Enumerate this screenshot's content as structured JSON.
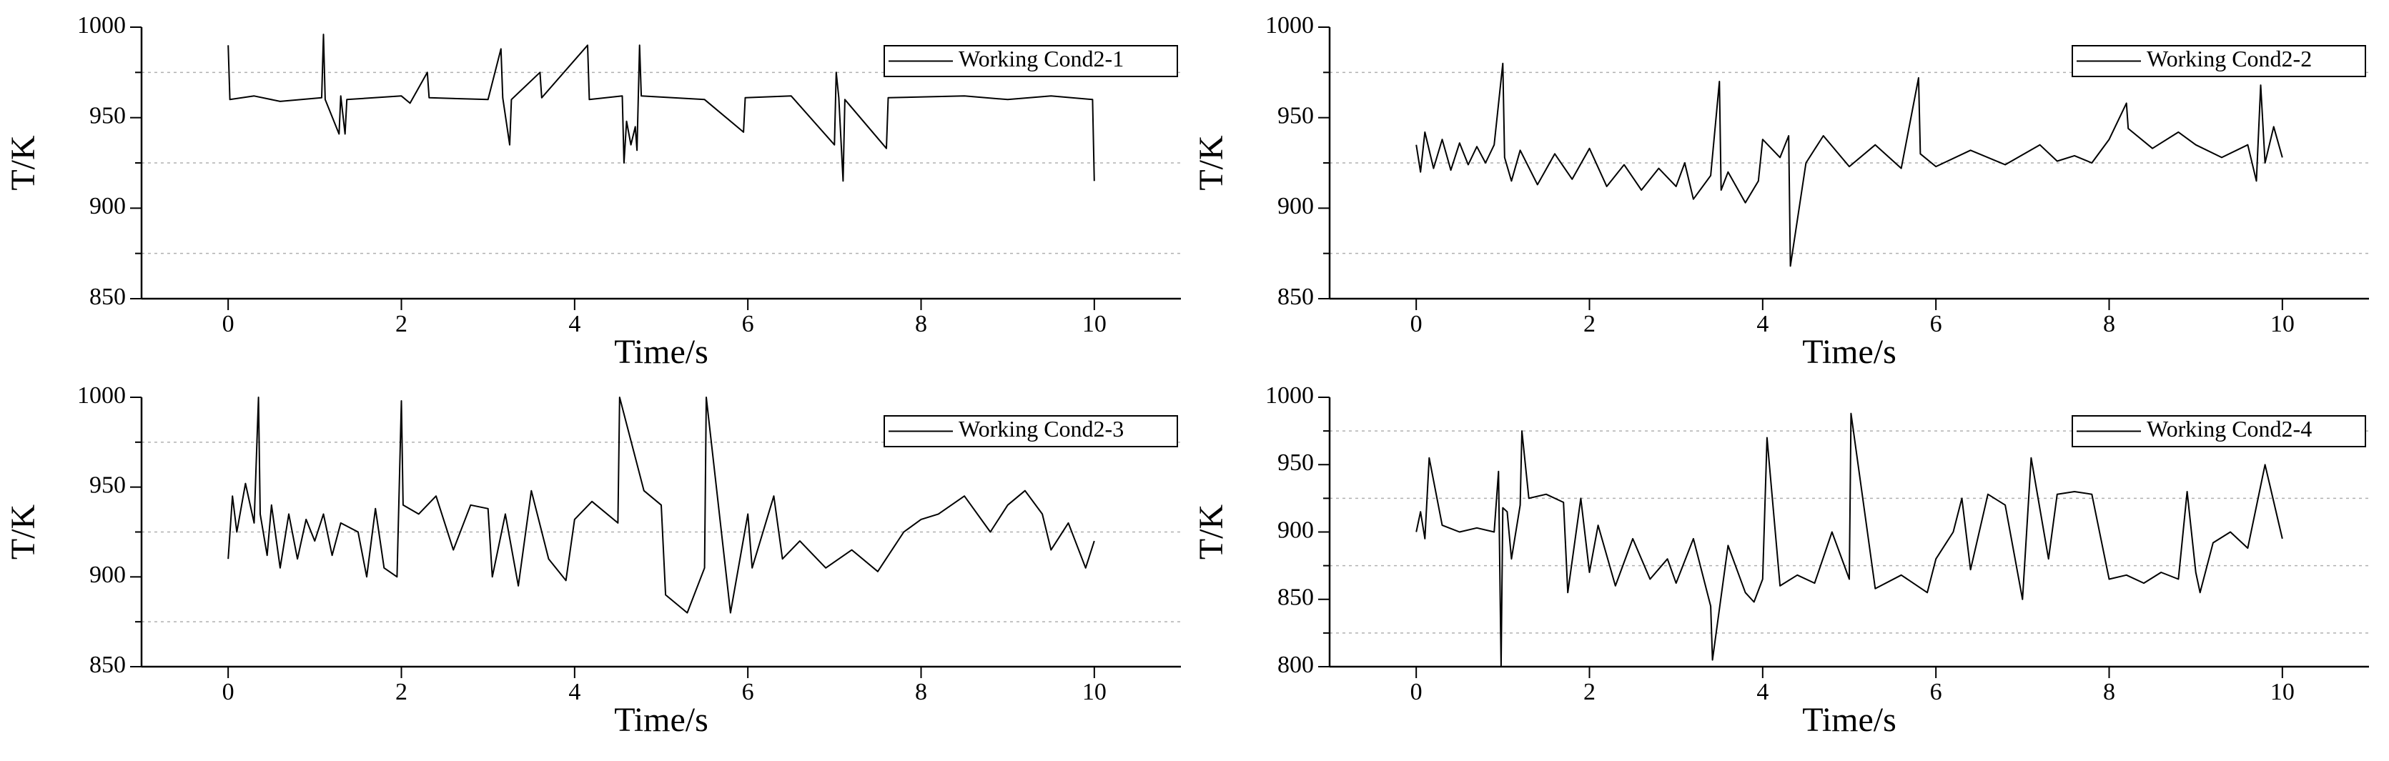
{
  "chart_data": [
    {
      "type": "line",
      "xlabel": "Time/s",
      "ylabel": "T/K",
      "legend": "upper right",
      "xlim": [
        -1,
        11
      ],
      "xticks": [
        0,
        2,
        4,
        6,
        8,
        10
      ],
      "ylim": [
        850,
        1000
      ],
      "yticks": [
        850,
        900,
        950,
        1000
      ],
      "minor_grid": [
        875,
        925,
        975
      ],
      "x": [
        0,
        0.02,
        0.3,
        0.6,
        1.08,
        1.1,
        1.12,
        1.28,
        1.3,
        1.35,
        1.37,
        2.0,
        2.1,
        2.3,
        2.32,
        3.0,
        3.15,
        3.17,
        3.25,
        3.27,
        3.6,
        3.62,
        4.15,
        4.17,
        4.55,
        4.57,
        4.6,
        4.65,
        4.7,
        4.72,
        4.75,
        4.77,
        5.5,
        5.95,
        5.97,
        6.5,
        7.0,
        7.02,
        7.05,
        7.1,
        7.12,
        7.6,
        7.62,
        8.5,
        9.0,
        9.5,
        9.98,
        10.0
      ],
      "series": [
        {
          "name": "Working Cond2-1",
          "color": "#000000",
          "values": [
            990,
            960,
            962,
            959,
            961,
            996,
            960,
            941,
            962,
            941,
            960,
            962,
            958,
            975,
            961,
            960,
            988,
            961,
            935,
            960,
            975,
            961,
            990,
            960,
            962,
            925,
            948,
            935,
            945,
            932,
            990,
            962,
            960,
            942,
            961,
            962,
            935,
            975,
            961,
            915,
            960,
            933,
            961,
            962,
            960,
            962,
            960,
            915
          ]
        }
      ]
    },
    {
      "type": "line",
      "xlabel": "Time/s",
      "ylabel": "T/K",
      "legend": "upper right",
      "xlim": [
        -1,
        11
      ],
      "xticks": [
        0,
        2,
        4,
        6,
        8,
        10
      ],
      "ylim": [
        850,
        1000
      ],
      "yticks": [
        850,
        900,
        950,
        1000
      ],
      "minor_grid": [
        875,
        925,
        975
      ],
      "x": [
        0,
        0.05,
        0.1,
        0.2,
        0.3,
        0.4,
        0.5,
        0.6,
        0.7,
        0.8,
        0.9,
        1.0,
        1.02,
        1.1,
        1.2,
        1.4,
        1.6,
        1.8,
        2.0,
        2.2,
        2.4,
        2.6,
        2.8,
        3.0,
        3.1,
        3.2,
        3.4,
        3.5,
        3.52,
        3.6,
        3.8,
        3.95,
        4.0,
        4.2,
        4.3,
        4.32,
        4.5,
        4.7,
        5.0,
        5.3,
        5.6,
        5.8,
        5.82,
        6.0,
        6.4,
        6.8,
        7.2,
        7.4,
        7.6,
        7.8,
        8.0,
        8.2,
        8.22,
        8.5,
        8.8,
        9.0,
        9.3,
        9.6,
        9.7,
        9.75,
        9.8,
        9.9,
        10.0
      ],
      "series": [
        {
          "name": "Working Cond2-2",
          "color": "#000000",
          "values": [
            935,
            920,
            942,
            922,
            938,
            921,
            936,
            924,
            934,
            925,
            935,
            980,
            928,
            915,
            932,
            913,
            930,
            916,
            933,
            912,
            924,
            910,
            922,
            912,
            925,
            905,
            918,
            970,
            910,
            920,
            903,
            915,
            938,
            928,
            940,
            868,
            925,
            940,
            923,
            935,
            922,
            972,
            930,
            923,
            932,
            924,
            935,
            926,
            929,
            925,
            938,
            958,
            944,
            933,
            942,
            935,
            928,
            935,
            915,
            968,
            925,
            945,
            928
          ]
        }
      ]
    },
    {
      "type": "line",
      "xlabel": "Time/s",
      "ylabel": "T/K",
      "legend": "upper right",
      "xlim": [
        -1,
        11
      ],
      "xticks": [
        0,
        2,
        4,
        6,
        8,
        10
      ],
      "ylim": [
        850,
        1000
      ],
      "yticks": [
        850,
        900,
        950,
        1000
      ],
      "minor_grid": [
        875,
        925,
        975
      ],
      "x": [
        0,
        0.05,
        0.1,
        0.2,
        0.3,
        0.35,
        0.37,
        0.45,
        0.5,
        0.6,
        0.7,
        0.8,
        0.9,
        1.0,
        1.1,
        1.2,
        1.3,
        1.5,
        1.6,
        1.7,
        1.8,
        1.95,
        2.0,
        2.02,
        2.2,
        2.4,
        2.6,
        2.8,
        3.0,
        3.05,
        3.2,
        3.35,
        3.5,
        3.7,
        3.9,
        4.0,
        4.2,
        4.5,
        4.52,
        4.8,
        5.0,
        5.05,
        5.3,
        5.5,
        5.52,
        5.8,
        6.0,
        6.05,
        6.3,
        6.4,
        6.6,
        6.9,
        7.2,
        7.5,
        7.8,
        8.0,
        8.2,
        8.5,
        8.8,
        9.0,
        9.2,
        9.4,
        9.5,
        9.7,
        9.9,
        10.0
      ],
      "series": [
        {
          "name": "Working Cond2-3",
          "color": "#000000",
          "values": [
            910,
            945,
            925,
            952,
            930,
            1000,
            935,
            912,
            940,
            905,
            935,
            910,
            932,
            920,
            935,
            912,
            930,
            925,
            900,
            938,
            905,
            900,
            998,
            940,
            935,
            945,
            915,
            940,
            938,
            900,
            935,
            895,
            948,
            910,
            898,
            932,
            942,
            930,
            1000,
            948,
            940,
            890,
            880,
            905,
            1000,
            880,
            935,
            905,
            945,
            910,
            920,
            905,
            915,
            903,
            925,
            932,
            935,
            945,
            925,
            940,
            948,
            935,
            915,
            930,
            905,
            920
          ]
        }
      ]
    },
    {
      "type": "line",
      "xlabel": "Time/s",
      "ylabel": "T/K",
      "legend": "upper right",
      "xlim": [
        -1,
        11
      ],
      "xticks": [
        0,
        2,
        4,
        6,
        8,
        10
      ],
      "ylim": [
        800,
        1000
      ],
      "yticks": [
        800,
        850,
        900,
        950,
        1000
      ],
      "minor_grid": [
        825,
        875,
        925,
        975
      ],
      "x": [
        0,
        0.05,
        0.1,
        0.15,
        0.3,
        0.5,
        0.7,
        0.9,
        0.95,
        0.98,
        1.0,
        1.05,
        1.1,
        1.2,
        1.22,
        1.3,
        1.5,
        1.7,
        1.75,
        1.9,
        2.0,
        2.1,
        2.3,
        2.5,
        2.7,
        2.9,
        3.0,
        3.2,
        3.4,
        3.42,
        3.6,
        3.8,
        3.9,
        4.0,
        4.05,
        4.2,
        4.4,
        4.6,
        4.8,
        5.0,
        5.02,
        5.3,
        5.6,
        5.9,
        6.0,
        6.2,
        6.3,
        6.4,
        6.6,
        6.8,
        7.0,
        7.1,
        7.3,
        7.4,
        7.6,
        7.8,
        8.0,
        8.2,
        8.4,
        8.6,
        8.8,
        8.9,
        9.0,
        9.05,
        9.2,
        9.4,
        9.6,
        9.8,
        10.0
      ],
      "series": [
        {
          "name": "Working Cond2-4",
          "color": "#000000",
          "values": [
            900,
            915,
            895,
            955,
            905,
            900,
            903,
            900,
            945,
            800,
            918,
            915,
            880,
            920,
            975,
            925,
            928,
            922,
            855,
            925,
            870,
            905,
            860,
            895,
            865,
            880,
            862,
            895,
            845,
            805,
            890,
            855,
            848,
            865,
            970,
            860,
            868,
            862,
            900,
            865,
            988,
            858,
            868,
            855,
            880,
            900,
            925,
            872,
            928,
            920,
            850,
            955,
            880,
            928,
            930,
            928,
            865,
            868,
            862,
            870,
            865,
            930,
            870,
            855,
            892,
            900,
            888,
            950,
            895
          ]
        }
      ]
    }
  ]
}
